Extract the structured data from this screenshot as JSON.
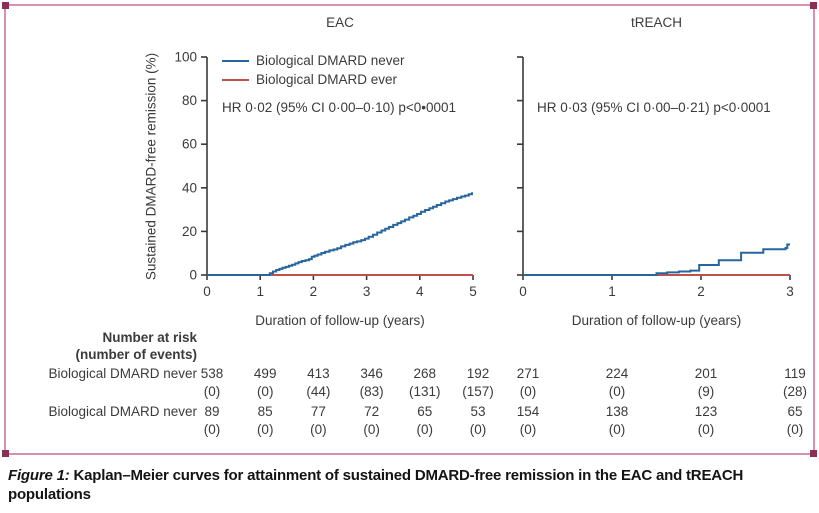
{
  "frame": {
    "border_color": "#d690b0",
    "corner_color": "#8c2f57"
  },
  "colors": {
    "axis": "#3a3a3a",
    "text": "#3b3b3b",
    "never_blue": "#27659e",
    "ever_red": "#c0504a"
  },
  "legend": {
    "items": [
      {
        "label": "Biological DMARD never",
        "color": "#27659e"
      },
      {
        "label": "Biological DMARD ever",
        "color": "#c0504a"
      }
    ]
  },
  "risk_table": {
    "header_line1": "Number at risk",
    "header_line2": "(number of events)",
    "rows": [
      {
        "label": "Biological DMARD never",
        "eac": [
          {
            "n": "538",
            "events": "(0)"
          },
          {
            "n": "499",
            "events": "(0)"
          },
          {
            "n": "413",
            "events": "(44)"
          },
          {
            "n": "346",
            "events": "(83)"
          },
          {
            "n": "268",
            "events": "(131)"
          },
          {
            "n": "192",
            "events": "(157)"
          }
        ],
        "treach": [
          {
            "n": "271",
            "events": "(0)"
          },
          {
            "n": "224",
            "events": "(0)"
          },
          {
            "n": "201",
            "events": "(9)"
          },
          {
            "n": "119",
            "events": "(28)"
          }
        ]
      },
      {
        "label": "Biological DMARD never",
        "eac": [
          {
            "n": "89",
            "events": "(0)"
          },
          {
            "n": "85",
            "events": "(0)"
          },
          {
            "n": "77",
            "events": "(0)"
          },
          {
            "n": "72",
            "events": "(0)"
          },
          {
            "n": "65",
            "events": "(0)"
          },
          {
            "n": "53",
            "events": "(0)"
          }
        ],
        "treach": [
          {
            "n": "154",
            "events": "(0)"
          },
          {
            "n": "138",
            "events": "(0)"
          },
          {
            "n": "123",
            "events": "(0)"
          },
          {
            "n": "65",
            "events": "(0)"
          }
        ]
      }
    ]
  },
  "caption": {
    "prefix": "Figure 1:",
    "text": " Kaplan–Meier curves for attainment of sustained DMARD-free remission in the EAC and tREACH populations"
  },
  "chart_data": [
    {
      "type": "line",
      "title": "EAC",
      "annotation": "HR 0·02 (95% CI 0·00–0·10) p<0•0001",
      "xlabel": "Duration of follow-up (years)",
      "ylabel": "Sustained DMARD-free remission (%)",
      "xlim": [
        0,
        5
      ],
      "ylim": [
        0,
        100
      ],
      "xticks": [
        0,
        1,
        2,
        3,
        4,
        5
      ],
      "yticks": [
        0,
        20,
        40,
        60,
        80,
        100
      ],
      "grid": false,
      "legend_position": "top-left",
      "series": [
        {
          "name": "Biological DMARD never",
          "color": "#27659e",
          "step": true,
          "x": [
            0,
            1.13,
            1.18,
            1.24,
            1.3,
            1.36,
            1.42,
            1.48,
            1.54,
            1.6,
            1.66,
            1.72,
            1.78,
            1.85,
            1.92,
            1.97,
            2.02,
            2.08,
            2.15,
            2.22,
            2.3,
            2.38,
            2.45,
            2.52,
            2.6,
            2.68,
            2.75,
            2.82,
            2.9,
            2.97,
            3.04,
            3.12,
            3.2,
            3.28,
            3.35,
            3.42,
            3.5,
            3.58,
            3.65,
            3.72,
            3.8,
            3.88,
            3.95,
            4.02,
            4.1,
            4.18,
            4.25,
            4.32,
            4.4,
            4.48,
            4.55,
            4.62,
            4.7,
            4.78,
            4.85,
            4.92,
            4.98,
            5.0
          ],
          "y": [
            0,
            0,
            0.8,
            1.6,
            2.3,
            2.8,
            3.3,
            3.7,
            4.2,
            4.7,
            5.3,
            5.9,
            6.4,
            6.8,
            7.3,
            8.4,
            8.8,
            9.4,
            10.1,
            10.7,
            11.3,
            11.7,
            12.3,
            13.1,
            13.8,
            14.4,
            15.0,
            15.4,
            16.0,
            16.7,
            17.5,
            18.5,
            19.5,
            20.4,
            21.2,
            22.0,
            23.0,
            23.8,
            24.6,
            25.4,
            26.4,
            27.2,
            28.0,
            29.0,
            29.8,
            30.6,
            31.3,
            32.1,
            32.9,
            33.7,
            34.2,
            34.8,
            35.4,
            36.0,
            36.4,
            37.0,
            37.5,
            37.5
          ]
        },
        {
          "name": "Biological DMARD ever",
          "color": "#c0504a",
          "step": true,
          "x": [
            0,
            5
          ],
          "y": [
            0,
            0
          ]
        }
      ]
    },
    {
      "type": "line",
      "title": "tREACH",
      "annotation": "HR 0·03 (95% CI 0·00–0·21) p<0·0001",
      "xlabel": "Duration of follow-up (years)",
      "ylabel": "Sustained DMARD-free remission (%)",
      "xlim": [
        0,
        3
      ],
      "ylim": [
        0,
        100
      ],
      "xticks": [
        0,
        1,
        2,
        3
      ],
      "yticks": [
        0,
        20,
        40,
        60,
        80,
        100
      ],
      "grid": false,
      "legend_position": "none",
      "series": [
        {
          "name": "Biological DMARD never",
          "color": "#27659e",
          "step": true,
          "x": [
            0,
            1.45,
            1.5,
            1.62,
            1.75,
            1.88,
            1.98,
            2.2,
            2.45,
            2.7,
            2.95,
            2.97,
            3.0
          ],
          "y": [
            0,
            0,
            0.8,
            1.2,
            1.6,
            2.0,
            4.6,
            6.8,
            10.2,
            11.8,
            12.4,
            14.0,
            14.0
          ]
        },
        {
          "name": "Biological DMARD ever",
          "color": "#c0504a",
          "step": true,
          "x": [
            0,
            3
          ],
          "y": [
            0,
            0
          ]
        }
      ]
    }
  ]
}
